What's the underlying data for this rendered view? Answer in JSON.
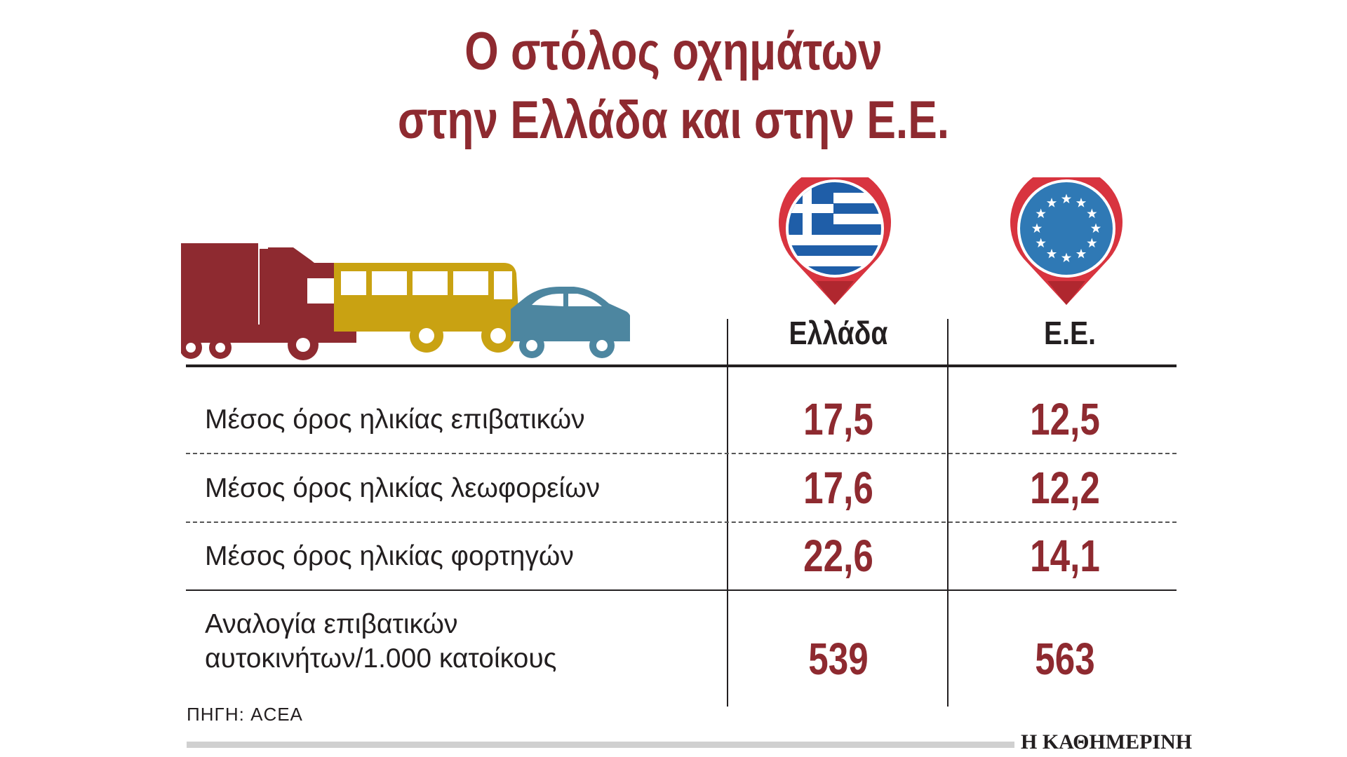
{
  "title_lines": [
    "Ο στόλος οχημάτων",
    "στην Ελλάδα και στην Ε.Ε."
  ],
  "columns": [
    "Ελλάδα",
    "Ε.Ε."
  ],
  "colors": {
    "title": "#8e2a30",
    "values": "#8e2a30",
    "truck": "#8e2a30",
    "bus": "#c9a212",
    "car": "#4d86a0",
    "pin": "#d8343f",
    "greek_flag_blue": "#1f5ea8",
    "eu_blue": "#2f79b5"
  },
  "icons": [
    "truck-icon",
    "bus-icon",
    "car-icon",
    "greece-flag-pin-icon",
    "eu-flag-pin-icon"
  ],
  "chart_data": {
    "type": "table",
    "columns": [
      "Ελλάδα",
      "Ε.Ε."
    ],
    "rows": [
      {
        "label": "Μέσος όρος ηλικίας επιβατικών",
        "values": [
          "17,5",
          "12,5"
        ]
      },
      {
        "label": "Μέσος όρος ηλικίας λεωφορείων",
        "values": [
          "17,6",
          "12,2"
        ]
      },
      {
        "label": "Μέσος όρος ηλικίας φορτηγών",
        "values": [
          "22,6",
          "14,1"
        ]
      },
      {
        "label_lines": [
          "Αναλογία επιβατικών",
          "αυτοκινήτων/1.000 κατοίκους"
        ],
        "values": [
          "539",
          "563"
        ]
      }
    ]
  },
  "source": "ΠΗΓΗ: ACEA",
  "publisher": "Η ΚΑΘΗΜΕΡΙΝΗ"
}
